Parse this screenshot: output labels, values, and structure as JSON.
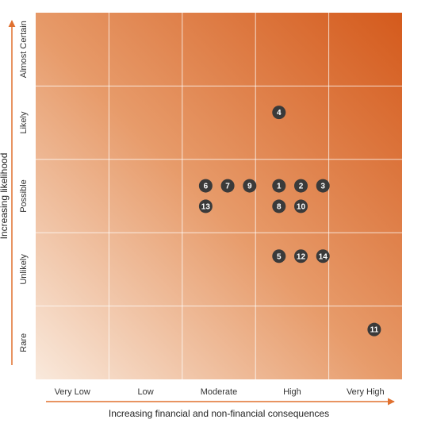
{
  "chart_data": {
    "type": "scatter",
    "title": "",
    "xlabel": "Increasing financial and non-financial consequences",
    "ylabel": "Increasing likelihood",
    "x_categories": [
      "Very Low",
      "Low",
      "Moderate",
      "High",
      "Very High"
    ],
    "y_categories": [
      "Rare",
      "Unlikely",
      "Possible",
      "Likely",
      "Almost Certain"
    ],
    "grid": true,
    "colors": {
      "heat_low": "#f9e9dc",
      "heat_mid": "#e79b6a",
      "heat_high": "#d45a1c",
      "grid_line": "#ffffff",
      "arrow": "#e0702f",
      "marker_fill": "#3a3a3a",
      "marker_text": "#ffffff"
    },
    "points": [
      {
        "label": "1",
        "x": "High",
        "y": "Possible",
        "col_offset": -0.18,
        "row_offset": -0.14
      },
      {
        "label": "2",
        "x": "High",
        "y": "Possible",
        "col_offset": 0.12,
        "row_offset": -0.14
      },
      {
        "label": "3",
        "x": "High",
        "y": "Possible",
        "col_offset": 0.42,
        "row_offset": -0.14
      },
      {
        "label": "4",
        "x": "High",
        "y": "Likely",
        "col_offset": -0.18,
        "row_offset": -0.14
      },
      {
        "label": "5",
        "x": "High",
        "y": "Unlikely",
        "col_offset": -0.18,
        "row_offset": -0.18
      },
      {
        "label": "6",
        "x": "Moderate",
        "y": "Possible",
        "col_offset": -0.18,
        "row_offset": -0.14
      },
      {
        "label": "7",
        "x": "Moderate",
        "y": "Possible",
        "col_offset": 0.12,
        "row_offset": -0.14
      },
      {
        "label": "8",
        "x": "High",
        "y": "Possible",
        "col_offset": -0.18,
        "row_offset": 0.14
      },
      {
        "label": "9",
        "x": "Moderate",
        "y": "Possible",
        "col_offset": 0.42,
        "row_offset": -0.14
      },
      {
        "label": "10",
        "x": "High",
        "y": "Possible",
        "col_offset": 0.12,
        "row_offset": 0.14
      },
      {
        "label": "11",
        "x": "Very High",
        "y": "Rare",
        "col_offset": 0.12,
        "row_offset": -0.18
      },
      {
        "label": "12",
        "x": "High",
        "y": "Unlikely",
        "col_offset": 0.12,
        "row_offset": -0.18
      },
      {
        "label": "13",
        "x": "Moderate",
        "y": "Possible",
        "col_offset": -0.18,
        "row_offset": 0.14
      },
      {
        "label": "14",
        "x": "High",
        "y": "Unlikely",
        "col_offset": 0.42,
        "row_offset": -0.18
      }
    ]
  }
}
